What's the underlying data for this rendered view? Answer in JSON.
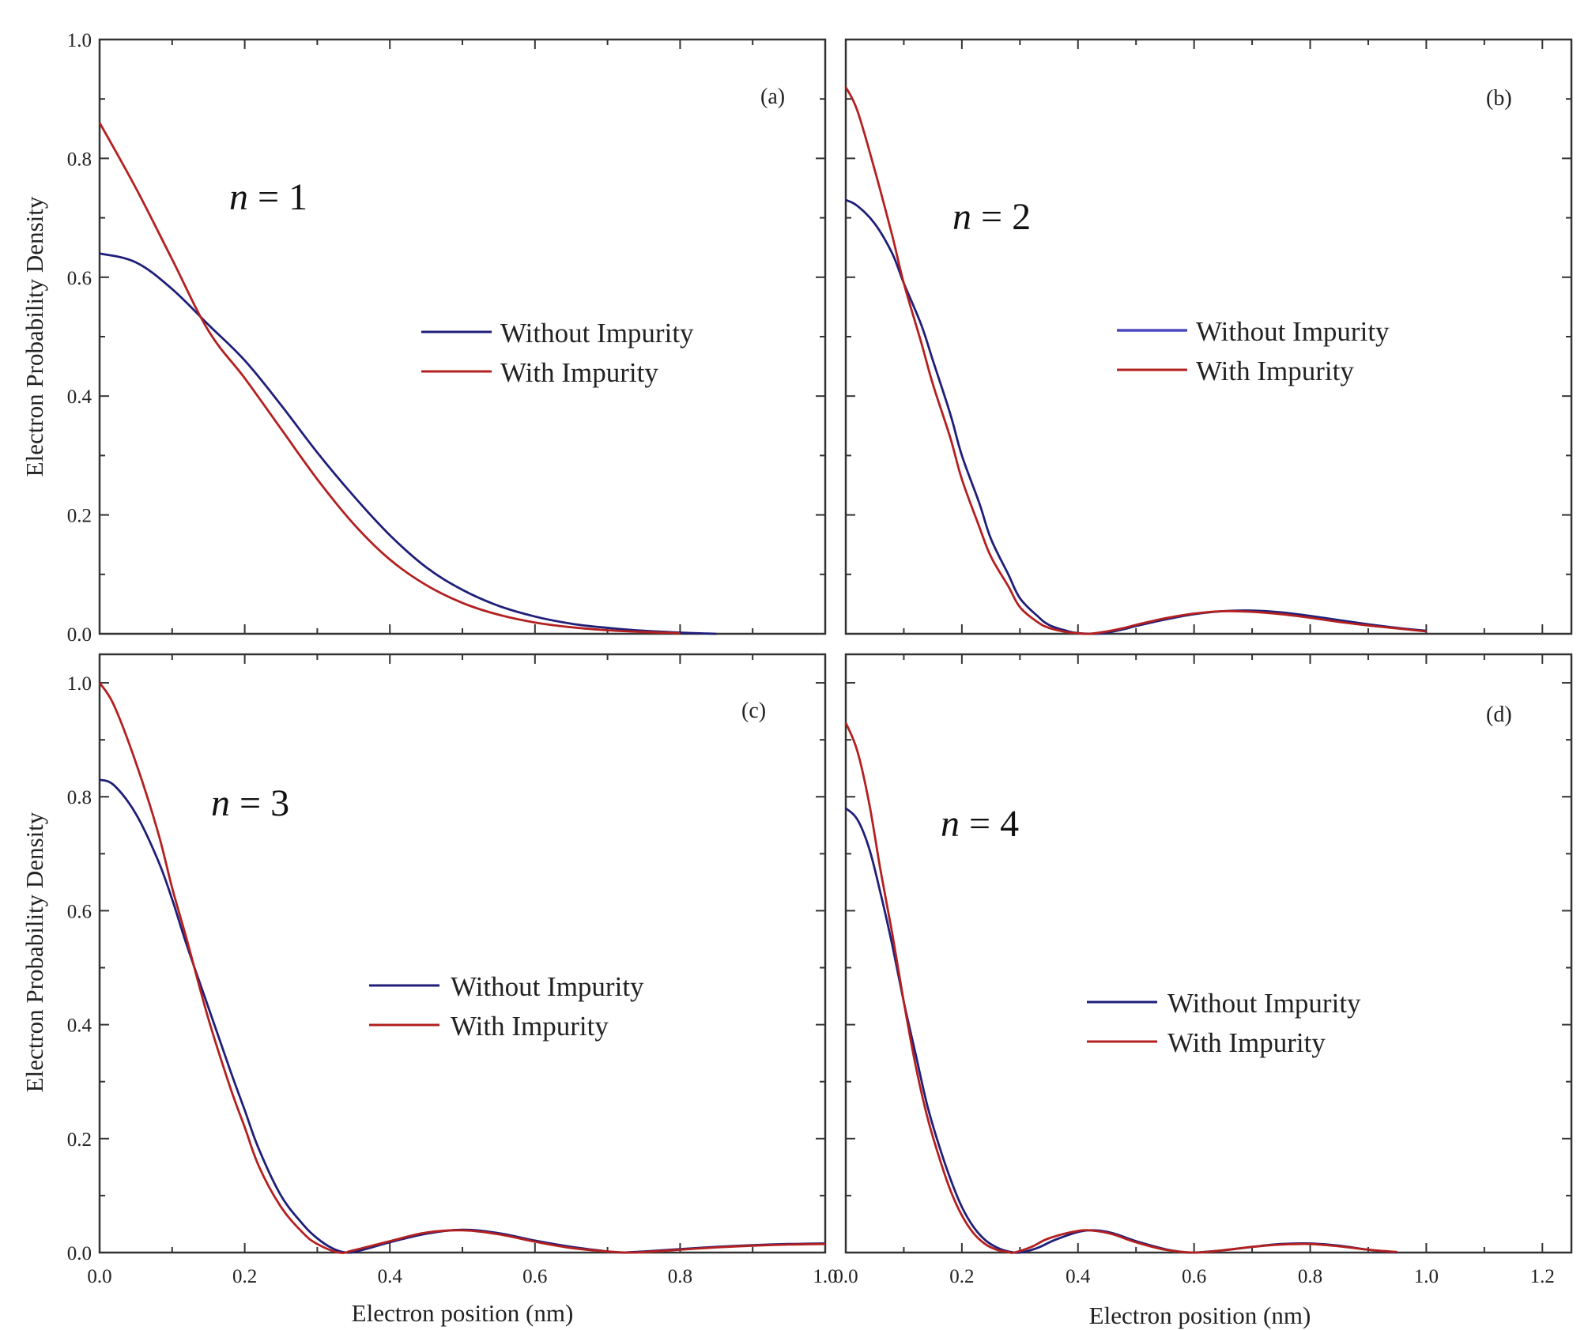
{
  "colors": {
    "without": "#1f1f7a",
    "with": "#b42020",
    "axis": "#333333"
  },
  "figure": {
    "ylabel": "Electron Probability Density",
    "xlabel": "Electron position (nm)"
  },
  "chart_data": [
    {
      "type": "line",
      "panel": "(a)",
      "annotation": {
        "symbol": "n",
        "rest": " = 1"
      },
      "xlim": [
        0,
        1.0
      ],
      "ylim": [
        0,
        1.0
      ],
      "xticks": [],
      "xticklabels": [],
      "yticks": [
        0,
        0.2,
        0.4,
        0.6,
        0.8,
        1.0
      ],
      "yticklabels": [
        "0.0",
        "0.2",
        "0.4",
        "0.6",
        "0.8",
        "1.0"
      ],
      "legend_pos": "center-right",
      "series": [
        {
          "name": "Without Impurity",
          "color": "#1f1f7a",
          "dip": 0,
          "x": [
            0,
            0.05,
            0.1,
            0.15,
            0.2,
            0.25,
            0.3,
            0.35,
            0.4,
            0.45,
            0.5,
            0.55,
            0.6,
            0.65,
            0.7,
            0.75,
            0.8,
            0.85
          ],
          "y": [
            0.64,
            0.625,
            0.58,
            0.52,
            0.46,
            0.385,
            0.305,
            0.232,
            0.166,
            0.112,
            0.074,
            0.047,
            0.029,
            0.017,
            0.01,
            0.005,
            0.002,
            0.0
          ]
        },
        {
          "name": "With Impurity",
          "color": "#b42020",
          "dip": 0,
          "x": [
            0,
            0.05,
            0.1,
            0.15,
            0.2,
            0.25,
            0.3,
            0.35,
            0.4,
            0.45,
            0.5,
            0.55,
            0.6,
            0.65,
            0.7,
            0.75,
            0.8
          ],
          "y": [
            0.86,
            0.75,
            0.63,
            0.51,
            0.43,
            0.345,
            0.26,
            0.185,
            0.125,
            0.082,
            0.052,
            0.032,
            0.019,
            0.011,
            0.006,
            0.003,
            0.001
          ]
        }
      ]
    },
    {
      "type": "line",
      "panel": "(b)",
      "annotation": {
        "symbol": "n",
        "rest": " = 2"
      },
      "xlim": [
        0,
        1.25
      ],
      "ylim": [
        0,
        1.0
      ],
      "xticks": [],
      "xticklabels": [],
      "yticks": [],
      "yticklabels": [],
      "legend_pos": "center-right",
      "series": [
        {
          "name": "Without Impurity",
          "color": "#1f1f7a",
          "dip": 0.43,
          "x": [
            0,
            0.02,
            0.05,
            0.08,
            0.1,
            0.13,
            0.15,
            0.18,
            0.2,
            0.23,
            0.25,
            0.28,
            0.3,
            0.33,
            0.35,
            0.38,
            0.4,
            0.43,
            0.45,
            0.48,
            0.5,
            0.55,
            0.6,
            0.65,
            0.7,
            0.75,
            0.8,
            0.85,
            0.9,
            0.95,
            1.0
          ],
          "y": [
            0.73,
            0.72,
            0.69,
            0.64,
            0.59,
            0.52,
            0.46,
            0.37,
            0.3,
            0.22,
            0.16,
            0.1,
            0.06,
            0.03,
            0.015,
            0.005,
            0.001,
            0.0,
            0.002,
            0.008,
            0.013,
            0.024,
            0.033,
            0.038,
            0.039,
            0.036,
            0.03,
            0.023,
            0.016,
            0.01,
            0.005
          ]
        },
        {
          "name": "With Impurity",
          "color": "#b42020",
          "dip": 0.42,
          "x": [
            0,
            0.02,
            0.05,
            0.08,
            0.1,
            0.13,
            0.15,
            0.18,
            0.2,
            0.23,
            0.25,
            0.28,
            0.3,
            0.33,
            0.35,
            0.38,
            0.4,
            0.42,
            0.45,
            0.48,
            0.5,
            0.55,
            0.6,
            0.65,
            0.7,
            0.75,
            0.8,
            0.85,
            0.9,
            0.95,
            1.0
          ],
          "y": [
            0.92,
            0.88,
            0.78,
            0.67,
            0.59,
            0.49,
            0.42,
            0.33,
            0.26,
            0.18,
            0.13,
            0.08,
            0.045,
            0.02,
            0.01,
            0.003,
            0.001,
            0.0,
            0.004,
            0.01,
            0.015,
            0.026,
            0.034,
            0.038,
            0.037,
            0.033,
            0.027,
            0.02,
            0.014,
            0.009,
            0.004
          ]
        }
      ]
    },
    {
      "type": "line",
      "panel": "(c)",
      "annotation": {
        "symbol": "n",
        "rest": " = 3"
      },
      "xlim": [
        0,
        1.0
      ],
      "ylim": [
        0,
        1.05
      ],
      "xticks": [
        0,
        0.2,
        0.4,
        0.6,
        0.8,
        1.0
      ],
      "xticklabels": [
        "0.0",
        "0.2",
        "0.4",
        "0.6",
        "0.8",
        "1.0"
      ],
      "yticks": [
        0,
        0.2,
        0.4,
        0.6,
        0.8,
        1.0
      ],
      "yticklabels": [
        "0.0",
        "0.2",
        "0.4",
        "0.6",
        "0.8",
        "1.0"
      ],
      "legend_pos": "center-right",
      "series": [
        {
          "name": "Without Impurity",
          "color": "#1f1f7a",
          "dip": 0.34,
          "x": [
            0,
            0.02,
            0.05,
            0.08,
            0.1,
            0.12,
            0.15,
            0.18,
            0.2,
            0.22,
            0.25,
            0.28,
            0.3,
            0.32,
            0.34,
            0.36,
            0.4,
            0.45,
            0.5,
            0.55,
            0.6,
            0.65,
            0.7,
            0.72,
            0.75,
            0.8,
            0.85,
            0.9,
            0.95,
            1.0
          ],
          "y": [
            0.83,
            0.82,
            0.77,
            0.69,
            0.62,
            0.54,
            0.43,
            0.32,
            0.25,
            0.18,
            0.1,
            0.05,
            0.025,
            0.008,
            0.0,
            0.004,
            0.018,
            0.033,
            0.04,
            0.034,
            0.021,
            0.01,
            0.002,
            0.0,
            0.002,
            0.006,
            0.01,
            0.013,
            0.015,
            0.016
          ]
        },
        {
          "name": "With Impurity",
          "color": "#b42020",
          "dip": 0.33,
          "x": [
            0,
            0.02,
            0.05,
            0.08,
            0.1,
            0.12,
            0.15,
            0.18,
            0.2,
            0.22,
            0.25,
            0.28,
            0.3,
            0.33,
            0.35,
            0.4,
            0.45,
            0.5,
            0.55,
            0.6,
            0.65,
            0.7,
            0.73,
            0.75,
            0.8,
            0.85,
            0.9,
            0.95,
            1.0
          ],
          "y": [
            1.0,
            0.96,
            0.86,
            0.74,
            0.64,
            0.55,
            0.41,
            0.29,
            0.22,
            0.15,
            0.08,
            0.035,
            0.015,
            0.0,
            0.004,
            0.02,
            0.035,
            0.039,
            0.032,
            0.019,
            0.008,
            0.002,
            0.0,
            0.001,
            0.005,
            0.009,
            0.012,
            0.014,
            0.015
          ]
        }
      ]
    },
    {
      "type": "line",
      "panel": "(d)",
      "annotation": {
        "symbol": "n",
        "rest": " = 4"
      },
      "xlim": [
        0,
        1.25
      ],
      "ylim": [
        0,
        1.05
      ],
      "xticks": [
        0,
        0.2,
        0.4,
        0.6,
        0.8,
        1.0,
        1.2
      ],
      "xticklabels": [
        "0.0",
        "0.2",
        "0.4",
        "0.6",
        "0.8",
        "1.0",
        "1.2"
      ],
      "yticks": [],
      "yticklabels": [],
      "legend_pos": "center-right",
      "series": [
        {
          "name": "Without Impurity",
          "color": "#1f1f7a",
          "dip": 0.3,
          "x": [
            0,
            0.02,
            0.04,
            0.06,
            0.08,
            0.1,
            0.12,
            0.14,
            0.16,
            0.18,
            0.2,
            0.22,
            0.24,
            0.26,
            0.28,
            0.3,
            0.33,
            0.36,
            0.4,
            0.43,
            0.46,
            0.5,
            0.55,
            0.58,
            0.6,
            0.65,
            0.7,
            0.75,
            0.8,
            0.85,
            0.9,
            0.95
          ],
          "y": [
            0.78,
            0.76,
            0.71,
            0.63,
            0.54,
            0.44,
            0.35,
            0.26,
            0.19,
            0.13,
            0.08,
            0.045,
            0.022,
            0.009,
            0.002,
            0.0,
            0.008,
            0.022,
            0.036,
            0.039,
            0.034,
            0.02,
            0.006,
            0.001,
            0.0,
            0.004,
            0.01,
            0.015,
            0.016,
            0.012,
            0.005,
            0.0
          ]
        },
        {
          "name": "With Impurity",
          "color": "#b42020",
          "dip": 0.29,
          "x": [
            0,
            0.02,
            0.04,
            0.06,
            0.08,
            0.1,
            0.12,
            0.14,
            0.16,
            0.18,
            0.2,
            0.22,
            0.24,
            0.26,
            0.28,
            0.29,
            0.32,
            0.35,
            0.4,
            0.43,
            0.46,
            0.5,
            0.55,
            0.6,
            0.65,
            0.7,
            0.75,
            0.8,
            0.85,
            0.9,
            0.95
          ],
          "y": [
            0.93,
            0.88,
            0.79,
            0.67,
            0.56,
            0.44,
            0.33,
            0.24,
            0.17,
            0.11,
            0.065,
            0.034,
            0.015,
            0.005,
            0.001,
            0.0,
            0.01,
            0.025,
            0.038,
            0.038,
            0.032,
            0.018,
            0.005,
            0.0,
            0.004,
            0.01,
            0.014,
            0.015,
            0.011,
            0.005,
            0.001
          ]
        }
      ]
    }
  ]
}
